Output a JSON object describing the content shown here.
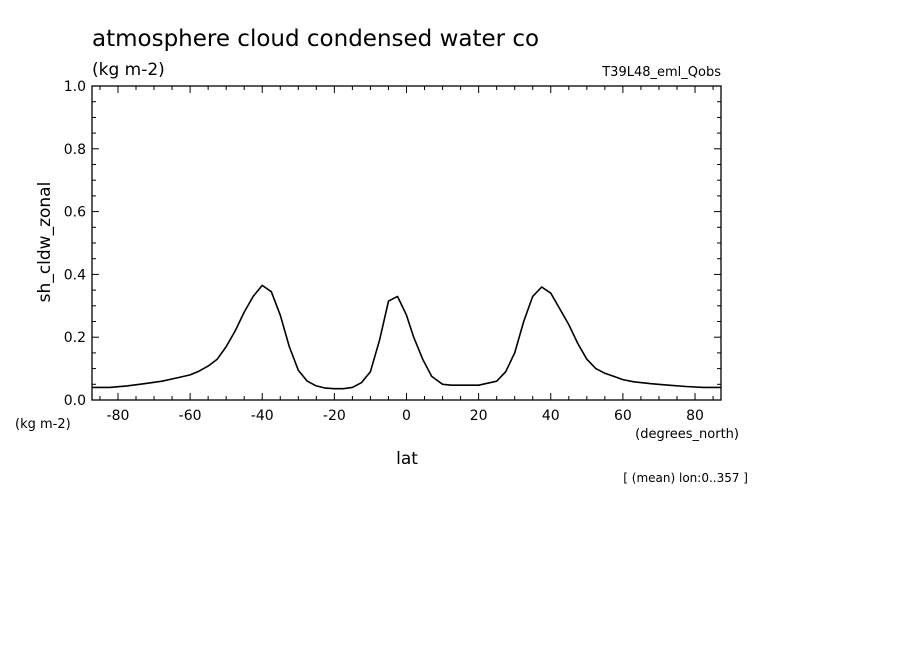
{
  "header": {
    "title": "atmosphere cloud condensed water co",
    "units": "(kg m-2)",
    "run_label": "T39L48_eml_Qobs"
  },
  "footer": {
    "y_units": "(kg m-2)",
    "x_units": "(degrees_north)",
    "note": "[ (mean) lon:0..357 ]"
  },
  "chart_data": {
    "type": "line",
    "xlabel": "lat",
    "ylabel": "sh_cldw_zonal",
    "xlim": [
      -87.2,
      87.2
    ],
    "ylim": [
      0.0,
      1.0
    ],
    "x_ticks": [
      -80,
      -60,
      -40,
      -20,
      0,
      20,
      40,
      60,
      80
    ],
    "x_tick_labels": [
      "-80",
      "-60",
      "-40",
      "-20",
      "0",
      "20",
      "40",
      "60",
      "80"
    ],
    "y_ticks": [
      0.0,
      0.2,
      0.4,
      0.6,
      0.8,
      1.0
    ],
    "y_tick_labels": [
      "0.0",
      "0.2",
      "0.4",
      "0.6",
      "0.8",
      "1.0"
    ],
    "grid": false,
    "color": "#000000",
    "series": [
      {
        "x": [
          -87.2,
          -82.3,
          -77.5,
          -72.7,
          -67.8,
          -63.0,
          -60.0,
          -57.5,
          -55.0,
          -52.5,
          -50.0,
          -47.5,
          -45.0,
          -42.5,
          -40.0,
          -37.5,
          -35.0,
          -32.5,
          -30.0,
          -27.5,
          -25.0,
          -22.5,
          -20.0,
          -17.5,
          -15.0,
          -12.5,
          -10.0,
          -7.5,
          -5.0,
          -2.5,
          0.0,
          2.0,
          4.5,
          7.0,
          10.0,
          12.5,
          15.0,
          20.0,
          25.0,
          27.5,
          30.0,
          32.5,
          35.0,
          37.5,
          40.0,
          42.5,
          45.0,
          47.5,
          50.0,
          52.5,
          55.0,
          57.5,
          60.0,
          63.0,
          67.8,
          72.7,
          77.5,
          82.3,
          87.2
        ],
        "values": [
          0.04,
          0.04,
          0.045,
          0.052,
          0.06,
          0.072,
          0.08,
          0.092,
          0.108,
          0.13,
          0.17,
          0.22,
          0.28,
          0.33,
          0.365,
          0.345,
          0.27,
          0.17,
          0.095,
          0.06,
          0.045,
          0.038,
          0.036,
          0.036,
          0.04,
          0.055,
          0.09,
          0.19,
          0.315,
          0.33,
          0.27,
          0.2,
          0.13,
          0.075,
          0.05,
          0.047,
          0.047,
          0.047,
          0.06,
          0.09,
          0.15,
          0.25,
          0.33,
          0.36,
          0.34,
          0.29,
          0.24,
          0.18,
          0.13,
          0.1,
          0.085,
          0.075,
          0.065,
          0.058,
          0.052,
          0.047,
          0.043,
          0.04,
          0.04
        ]
      }
    ]
  }
}
